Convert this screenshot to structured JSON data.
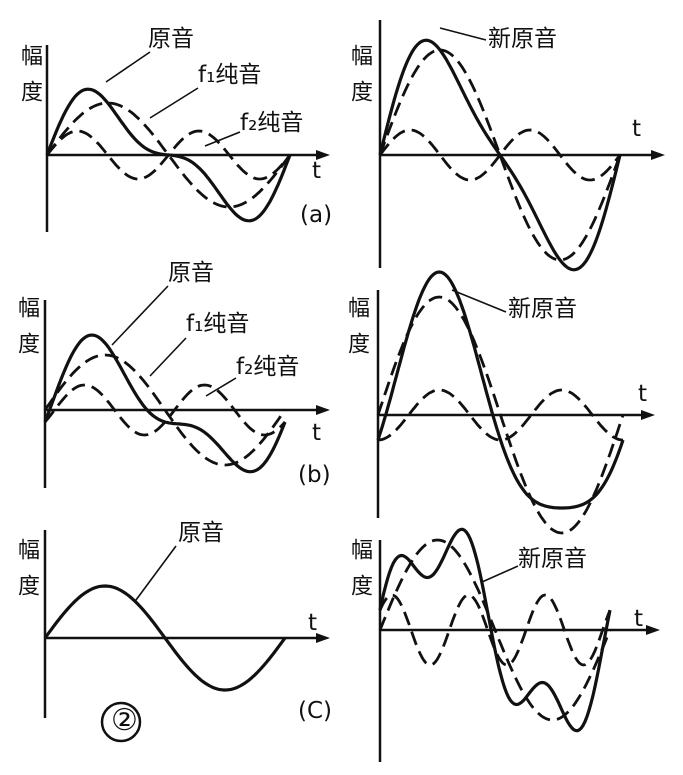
{
  "figure_number": "②",
  "panels": [
    {
      "caption": "(a)",
      "left": {
        "y_label": "幅度",
        "x_label": "t",
        "labels": [
          "原音",
          "f₁纯音",
          "f₂纯音"
        ]
      },
      "right": {
        "y_label": "幅度",
        "x_label": "t",
        "labels": [
          "新原音"
        ]
      }
    },
    {
      "caption": "(b)",
      "left": {
        "y_label": "幅度",
        "x_label": "t",
        "labels": [
          "原音",
          "f₁纯音",
          "f₂纯音"
        ]
      },
      "right": {
        "y_label": "幅度",
        "x_label": "t",
        "labels": [
          "新原音"
        ]
      }
    },
    {
      "caption": "(C)",
      "left": {
        "y_label": "幅度",
        "x_label": "t",
        "labels": [
          "原音"
        ]
      },
      "right": {
        "y_label": "幅度",
        "x_label": "t",
        "labels": [
          "新原音"
        ]
      }
    }
  ]
}
